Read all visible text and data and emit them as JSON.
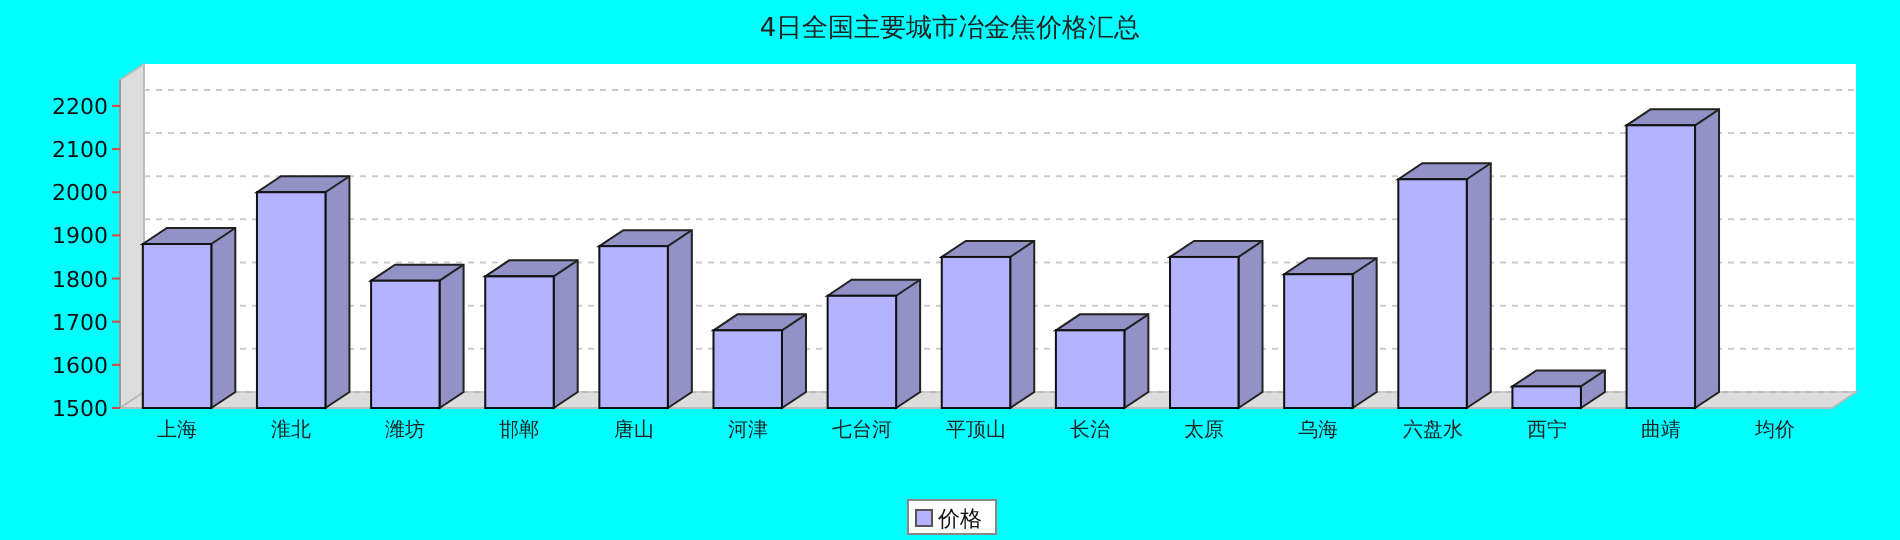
{
  "chart_data": {
    "type": "bar",
    "title": "4日全国主要城市冶金焦价格汇总",
    "categories": [
      "上海",
      "淮北",
      "潍坊",
      "邯郸",
      "唐山",
      "河津",
      "七台河",
      "平顶山",
      "长治",
      "太原",
      "乌海",
      "六盘水",
      "西宁",
      "曲靖",
      "均价"
    ],
    "series": [
      {
        "name": "价格",
        "color": "#b3b3ff",
        "values": [
          1880,
          2000,
          1795,
          1805,
          1875,
          1680,
          1760,
          1850,
          1680,
          1850,
          1810,
          2030,
          1550,
          2155,
          null
        ]
      }
    ],
    "ylim": [
      1500,
      2260
    ],
    "yticks": [
      1500,
      1600,
      1700,
      1800,
      1900,
      2000,
      2100,
      2200
    ],
    "grid": "y",
    "legend": "bottom"
  }
}
